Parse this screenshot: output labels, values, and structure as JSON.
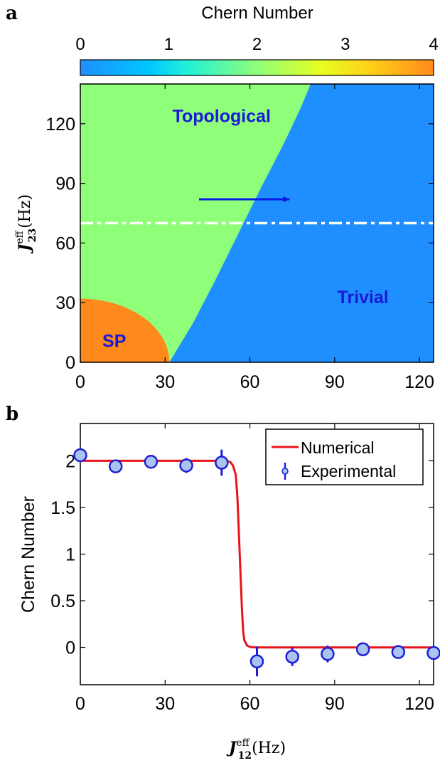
{
  "panels": {
    "a": {
      "label": "a"
    },
    "b": {
      "label": "b"
    }
  },
  "colors": {
    "trivial": "#1f8fff",
    "topological": "#8fff7a",
    "sp": "#ff8a1c",
    "arrow": "#0b1ae6",
    "dashed_line": "#ffffff",
    "region_text": "#1a1ad8",
    "numerical": "#e8141a",
    "experimental_fill": "#aac4f0",
    "experimental_edge": "#1f1fd6"
  },
  "chart_data": [
    {
      "type": "heatmap",
      "panel": "a",
      "colorbar": {
        "label": "Chern Number",
        "range": [
          0,
          4
        ],
        "ticks": [
          "0",
          "1",
          "2",
          "3",
          "4"
        ]
      },
      "xlim": [
        0,
        125
      ],
      "ylim": [
        0,
        140
      ],
      "xticks": [
        "0",
        "30",
        "60",
        "90",
        "120"
      ],
      "yticks": [
        "0",
        "30",
        "60",
        "90",
        "120"
      ],
      "ylabel": {
        "symbol": "J",
        "subscript": "23",
        "superscript": "eff",
        "unit": "(Hz)"
      },
      "regions": [
        {
          "label": "Topological",
          "chern": 2,
          "label_at": [
            50,
            124
          ]
        },
        {
          "label": "Trivial",
          "chern": 0,
          "label_at": [
            100,
            33
          ]
        },
        {
          "label": "SP",
          "chern": 4,
          "label_at": [
            12,
            11
          ]
        }
      ],
      "boundary_topological_trivial": [
        [
          31.5,
          0
        ],
        [
          40,
          20
        ],
        [
          48,
          42
        ],
        [
          56,
          65
        ],
        [
          64,
          88
        ],
        [
          72,
          110
        ],
        [
          78,
          128
        ],
        [
          81.5,
          140
        ]
      ],
      "sp_boundary": {
        "shape": "quarter-ellipse",
        "x_radius": 31.5,
        "y_radius": 32
      },
      "dashed_line_y": 70,
      "arrow": {
        "x_from": 42,
        "x_to": 74,
        "y": 82
      }
    },
    {
      "type": "line",
      "panel": "b",
      "xlabel": {
        "symbol": "J",
        "subscript": "12",
        "superscript": "eff",
        "unit": "(Hz)"
      },
      "ylabel": "Chern Number",
      "xlim": [
        0,
        125
      ],
      "ylim": [
        -0.4,
        2.4
      ],
      "xticks": [
        "0",
        "30",
        "60",
        "90",
        "120"
      ],
      "yticks": [
        "0",
        "0.5",
        "1",
        "1.5",
        "2"
      ],
      "legend": {
        "position": "top-right",
        "entries": [
          "Numerical",
          "Experimental"
        ]
      },
      "series": [
        {
          "name": "Numerical",
          "kind": "line",
          "x": [
            0,
            50,
            53,
            54,
            55,
            55.6,
            56,
            56.4,
            56.8,
            57.2,
            57.6,
            58,
            59,
            60,
            62,
            125
          ],
          "y": [
            2,
            2,
            1.99,
            1.95,
            1.85,
            1.6,
            1.3,
            1.0,
            0.7,
            0.4,
            0.18,
            0.08,
            0.02,
            0.005,
            0,
            0
          ]
        },
        {
          "name": "Experimental",
          "kind": "errorbar",
          "x": [
            0,
            12.5,
            25,
            37.5,
            50,
            62.5,
            75,
            87.5,
            100,
            112.5,
            125
          ],
          "y": [
            2.06,
            1.94,
            1.99,
            1.95,
            1.98,
            -0.15,
            -0.1,
            -0.07,
            -0.02,
            -0.05,
            -0.06
          ],
          "err": [
            0.02,
            0.03,
            0.03,
            0.08,
            0.14,
            0.16,
            0.1,
            0.09,
            0.02,
            0.02,
            0.02
          ]
        }
      ]
    }
  ]
}
